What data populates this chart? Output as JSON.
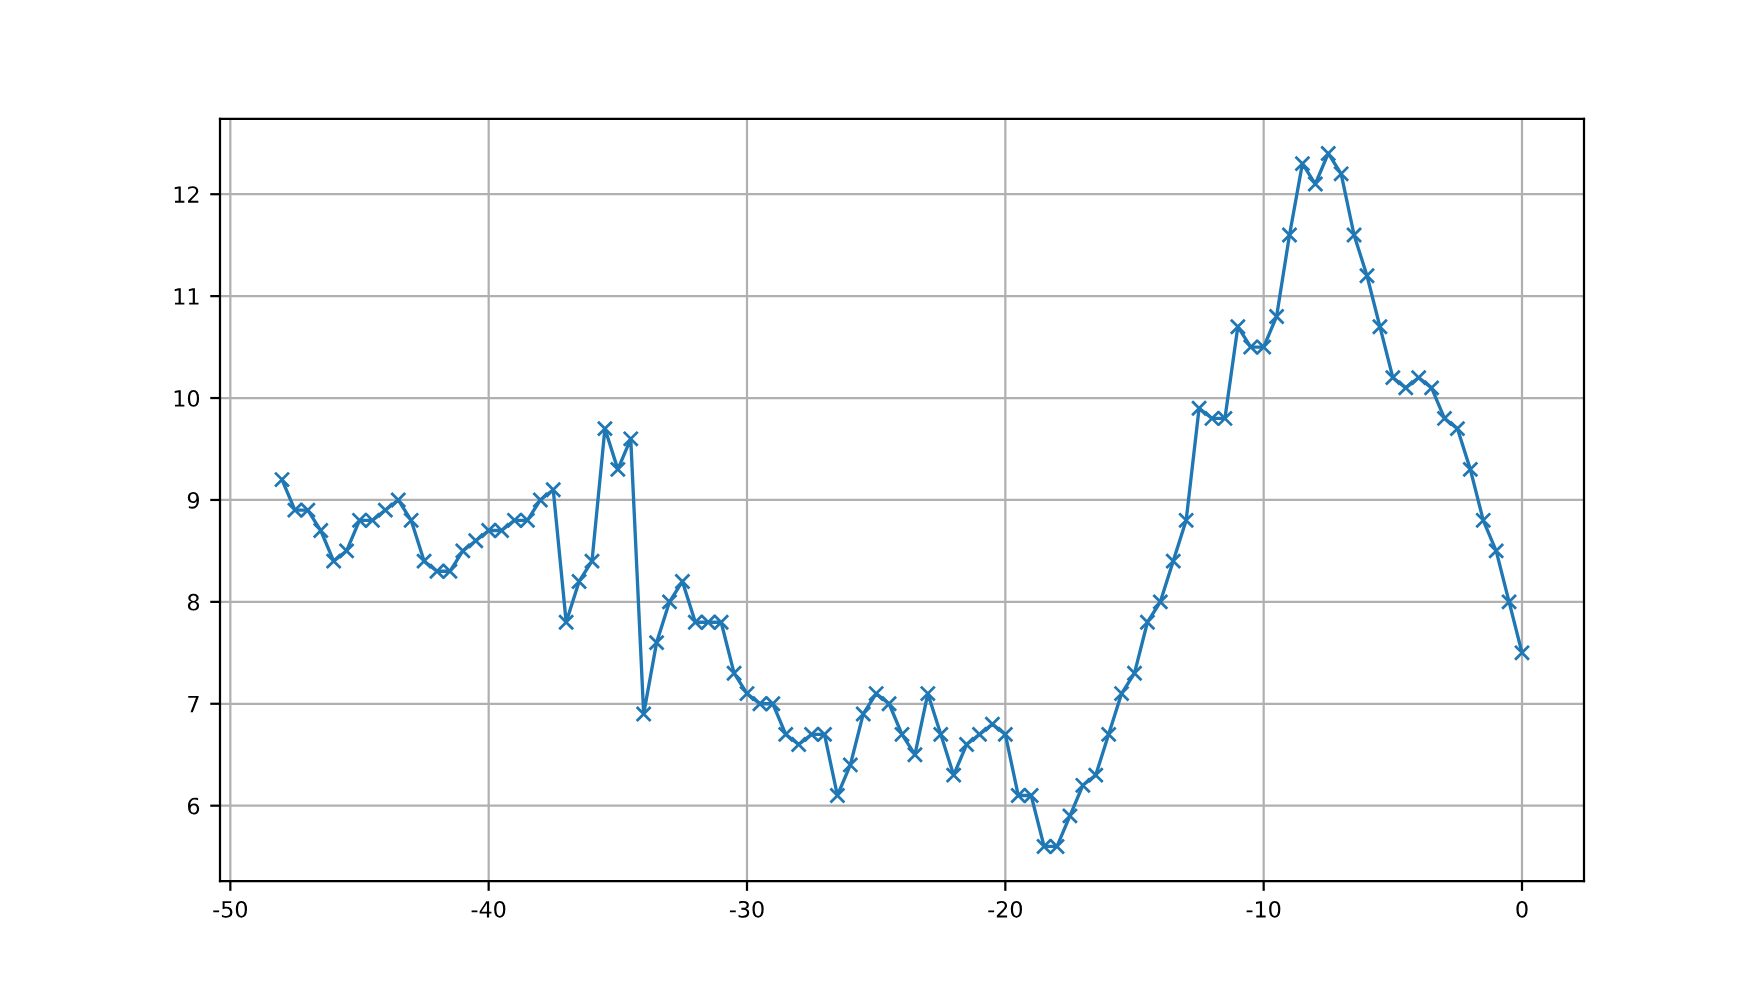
{
  "chart_data": {
    "type": "line",
    "marker": "cross",
    "grid": true,
    "x": [
      -48,
      -47.5,
      -47,
      -46.5,
      -46,
      -45.5,
      -45,
      -44.5,
      -44,
      -43.5,
      -43,
      -42.5,
      -42,
      -41.5,
      -41,
      -40.5,
      -40,
      -39.5,
      -39,
      -38.5,
      -38,
      -37.5,
      -37,
      -36.5,
      -36,
      -35.5,
      -35,
      -34.5,
      -34,
      -33.5,
      -33,
      -32.5,
      -32,
      -31.5,
      -31,
      -30.5,
      -30,
      -29.5,
      -29,
      -28.5,
      -28,
      -27.5,
      -27,
      -26.5,
      -26,
      -25.5,
      -25,
      -24.5,
      -24,
      -23.5,
      -23,
      -22.5,
      -22,
      -21.5,
      -21,
      -20.5,
      -20,
      -19.5,
      -19,
      -18.5,
      -18,
      -17.5,
      -17,
      -16.5,
      -16,
      -15.5,
      -15,
      -14.5,
      -14,
      -13.5,
      -13,
      -12.5,
      -12,
      -11.5,
      -11,
      -10.5,
      -10,
      -9.5,
      -9,
      -8.5,
      -8,
      -7.5,
      -7,
      -6.5,
      -6,
      -5.5,
      -5,
      -4.5,
      -4,
      -3.5,
      -3,
      -2.5,
      -2,
      -1.5,
      -1,
      -0.5,
      0
    ],
    "series": [
      {
        "color": "#1f77b4",
        "values": [
          9.2,
          8.9,
          8.9,
          8.7,
          8.4,
          8.5,
          8.8,
          8.8,
          8.9,
          9.0,
          8.8,
          8.4,
          8.3,
          8.3,
          8.5,
          8.6,
          8.7,
          8.7,
          8.8,
          8.8,
          9.0,
          9.1,
          7.8,
          8.2,
          8.4,
          9.7,
          9.3,
          9.6,
          6.9,
          7.6,
          8.0,
          8.2,
          7.8,
          7.8,
          7.8,
          7.3,
          7.1,
          7.0,
          7.0,
          6.7,
          6.6,
          6.7,
          6.7,
          6.1,
          6.4,
          6.9,
          7.1,
          7.0,
          6.7,
          6.5,
          7.1,
          6.7,
          6.3,
          6.6,
          6.7,
          6.8,
          6.7,
          6.1,
          6.1,
          5.6,
          5.6,
          5.9,
          6.2,
          6.3,
          6.7,
          7.1,
          7.3,
          7.8,
          8.0,
          8.4,
          8.8,
          9.9,
          9.8,
          9.8,
          10.7,
          10.5,
          10.5,
          10.8,
          11.6,
          12.3,
          12.1,
          12.4,
          12.2,
          11.6,
          11.2,
          10.7,
          10.2,
          10.1,
          10.2,
          10.1,
          9.8,
          9.7,
          9.3,
          8.8,
          8.5,
          8.0,
          7.5
        ]
      }
    ],
    "xlim": [
      -50.4,
      2.4
    ],
    "ylim": [
      5.26,
      12.74
    ],
    "xticks": [
      -50,
      -40,
      -30,
      -20,
      -10,
      0
    ],
    "yticks": [
      6,
      7,
      8,
      9,
      10,
      11,
      12
    ]
  }
}
